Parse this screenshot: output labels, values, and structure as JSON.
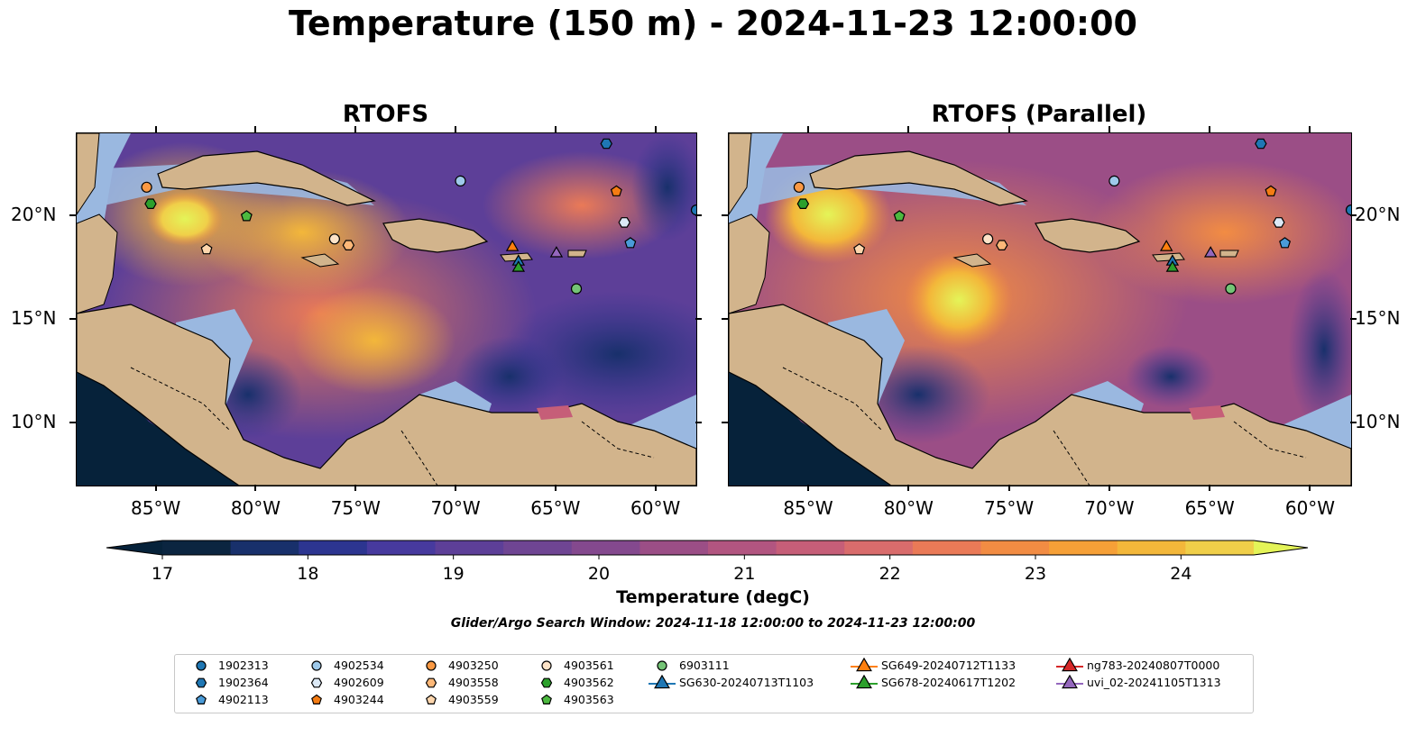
{
  "title": "Temperature (150 m) - 2024-11-23 12:00:00",
  "chart_data": [
    {
      "type": "heatmap",
      "title": "RTOFS",
      "variable": "Temperature (150 m)",
      "x_ticks": [
        "85°W",
        "80°W",
        "75°W",
        "70°W",
        "65°W",
        "60°W"
      ],
      "y_ticks": [
        "20°N",
        "15°N",
        "10°N"
      ],
      "lon_range": [
        -89,
        -58
      ],
      "lat_range": [
        7,
        24
      ],
      "markers": [
        {
          "id": "1902364",
          "lon": -62.5,
          "lat": 23.5
        },
        {
          "id": "4903250",
          "lon": -85.5,
          "lat": 21.4
        },
        {
          "id": "4903562",
          "lon": -85.3,
          "lat": 20.6
        },
        {
          "id": "4902534",
          "lon": -69.8,
          "lat": 21.7
        },
        {
          "id": "4903244",
          "lon": -62.0,
          "lat": 21.2
        },
        {
          "id": "4903563",
          "lon": -80.5,
          "lat": 20.0
        },
        {
          "id": "4902609",
          "lon": -61.6,
          "lat": 19.7
        },
        {
          "id": "4903561",
          "lon": -76.1,
          "lat": 18.9
        },
        {
          "id": "4903558",
          "lon": -75.4,
          "lat": 18.6
        },
        {
          "id": "4903559",
          "lon": -82.5,
          "lat": 18.4
        },
        {
          "id": "4902113",
          "lon": -61.3,
          "lat": 18.7
        },
        {
          "id": "SG649-20240712T1133",
          "lon": -67.2,
          "lat": 18.5
        },
        {
          "id": "SG630-20240713T1103",
          "lon": -66.9,
          "lat": 17.8
        },
        {
          "id": "SG678-20240617T1202",
          "lon": -66.9,
          "lat": 17.5
        },
        {
          "id": "uvi_02-20241105T1313",
          "lon": -65.0,
          "lat": 18.2
        },
        {
          "id": "6903111",
          "lon": -64.0,
          "lat": 16.5
        },
        {
          "id": "1902313",
          "lon": -58.0,
          "lat": 20.3
        }
      ]
    },
    {
      "type": "heatmap",
      "title": "RTOFS (Parallel)",
      "variable": "Temperature (150 m)",
      "x_ticks": [
        "85°W",
        "80°W",
        "75°W",
        "70°W",
        "65°W",
        "60°W"
      ],
      "y_ticks": [
        "20°N",
        "15°N",
        "10°N"
      ],
      "lon_range": [
        -89,
        -58
      ],
      "lat_range": [
        7,
        24
      ],
      "markers": [
        {
          "id": "1902364",
          "lon": -62.5,
          "lat": 23.5
        },
        {
          "id": "4903250",
          "lon": -85.5,
          "lat": 21.4
        },
        {
          "id": "4903562",
          "lon": -85.3,
          "lat": 20.6
        },
        {
          "id": "4902534",
          "lon": -69.8,
          "lat": 21.7
        },
        {
          "id": "4903244",
          "lon": -62.0,
          "lat": 21.2
        },
        {
          "id": "4903563",
          "lon": -80.5,
          "lat": 20.0
        },
        {
          "id": "4902609",
          "lon": -61.6,
          "lat": 19.7
        },
        {
          "id": "4903561",
          "lon": -76.1,
          "lat": 18.9
        },
        {
          "id": "4903558",
          "lon": -75.4,
          "lat": 18.6
        },
        {
          "id": "4903559",
          "lon": -82.5,
          "lat": 18.4
        },
        {
          "id": "4902113",
          "lon": -61.3,
          "lat": 18.7
        },
        {
          "id": "SG649-20240712T1133",
          "lon": -67.2,
          "lat": 18.5
        },
        {
          "id": "SG630-20240713T1103",
          "lon": -66.9,
          "lat": 17.8
        },
        {
          "id": "SG678-20240617T1202",
          "lon": -66.9,
          "lat": 17.5
        },
        {
          "id": "uvi_02-20241105T1313",
          "lon": -65.0,
          "lat": 18.2
        },
        {
          "id": "6903111",
          "lon": -64.0,
          "lat": 16.5
        },
        {
          "id": "1902313",
          "lon": -58.0,
          "lat": 20.3
        }
      ]
    }
  ],
  "colorbar": {
    "label": "Temperature (degC)",
    "ticks": [
      "17",
      "18",
      "19",
      "20",
      "21",
      "22",
      "23",
      "24"
    ],
    "range": [
      17,
      24.5
    ],
    "step": 0.5,
    "colors": [
      "#0b2540",
      "#18306b",
      "#2c3590",
      "#473a9e",
      "#5d3f98",
      "#6f4593",
      "#84498e",
      "#9b4e86",
      "#b25580",
      "#c65e78",
      "#d96c6c",
      "#ea7a57",
      "#f28c43",
      "#f6a037",
      "#f3b73a",
      "#f0cf49"
    ],
    "under_color": "#06223a",
    "over_color": "#e4f458"
  },
  "search_window": "Glider/Argo Search Window: 2024-11-18 12:00:00 to 2024-11-23 12:00:00",
  "legend": [
    {
      "label": "1902313",
      "shape": "circle",
      "color": "#1f77b4"
    },
    {
      "label": "1902364",
      "shape": "hexagon",
      "color": "#1f77b4"
    },
    {
      "label": "4902113",
      "shape": "pentagon",
      "color": "#4a9bd8"
    },
    {
      "label": "4902534",
      "shape": "circle",
      "color": "#9ec9ea"
    },
    {
      "label": "4902609",
      "shape": "hexagon",
      "color": "#dce9f6"
    },
    {
      "label": "4903244",
      "shape": "pentagon",
      "color": "#f47c13"
    },
    {
      "label": "4903250",
      "shape": "circle",
      "color": "#fb9943"
    },
    {
      "label": "4903558",
      "shape": "hexagon",
      "color": "#fdb878"
    },
    {
      "label": "4903559",
      "shape": "pentagon",
      "color": "#fdd6ad"
    },
    {
      "label": "4903561",
      "shape": "circle",
      "color": "#fde3c8"
    },
    {
      "label": "4903562",
      "shape": "hexagon",
      "color": "#2ca02c"
    },
    {
      "label": "4903563",
      "shape": "pentagon",
      "color": "#4cb93f"
    },
    {
      "label": "6903111",
      "shape": "circle",
      "color": "#74c476"
    },
    {
      "label": "SG630-20240713T1103",
      "shape": "triangle-line",
      "color": "#1f77b4"
    },
    {
      "label": "SG649-20240712T1133",
      "shape": "triangle-line",
      "color": "#ff7f0e"
    },
    {
      "label": "SG678-20240617T1202",
      "shape": "triangle-line",
      "color": "#2ca02c"
    },
    {
      "label": "ng783-20240807T0000",
      "shape": "triangle-line",
      "color": "#d62728"
    },
    {
      "label": "uvi_02-20241105T1313",
      "shape": "triangle-line",
      "color": "#9467bd"
    }
  ]
}
